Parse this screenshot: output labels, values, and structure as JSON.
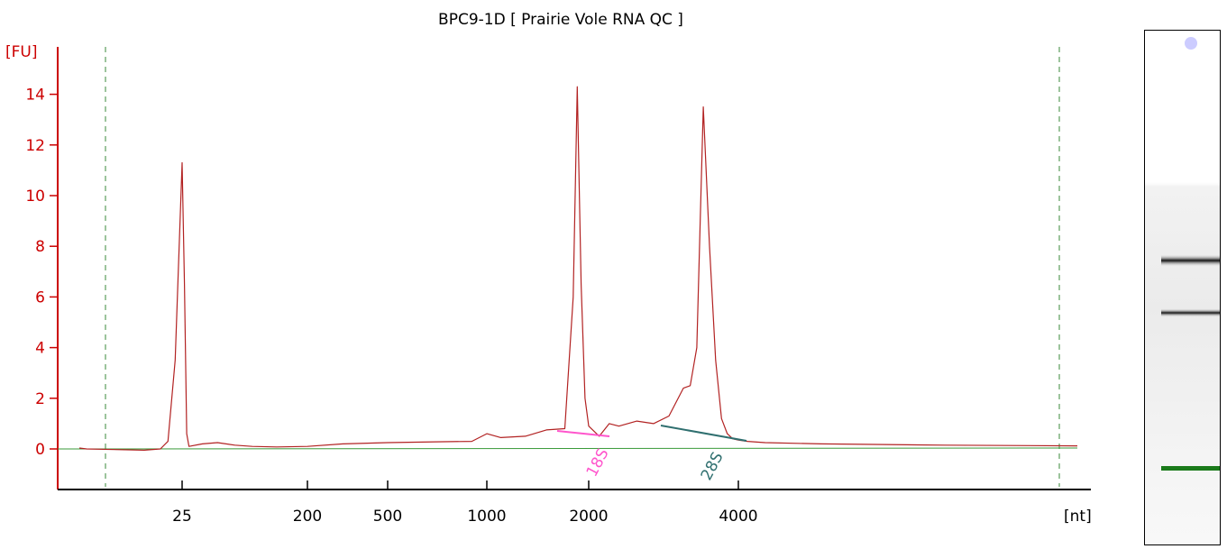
{
  "chart_data": {
    "type": "line",
    "title": "BPC9-1D  [ Prairie Vole RNA QC ]",
    "ylabel": "[FU]",
    "xlabel": "[nt]",
    "ylim": [
      -1.6,
      15.5
    ],
    "yticks": [
      0,
      2,
      4,
      6,
      8,
      10,
      12,
      14
    ],
    "ytick_labels": [
      "0",
      "2",
      "4",
      "6",
      "8",
      "10",
      "12",
      "14"
    ],
    "x_scale": "nonlinear (ladder-calibrated size axis)",
    "xtick_labels": [
      "25",
      "200",
      "500",
      "1000",
      "2000",
      "4000"
    ],
    "series": [
      {
        "color": "#b22222",
        "x": [
          20,
          22,
          23,
          24,
          25,
          26,
          27,
          28,
          35,
          45,
          60,
          80,
          120,
          200,
          300,
          500,
          700,
          900,
          1000,
          1100,
          1300,
          1500,
          1700,
          1800,
          1850,
          1900,
          1950,
          2000,
          2100,
          2200,
          2300,
          2500,
          2700,
          2900,
          3100,
          3200,
          3300,
          3400,
          3500,
          3600,
          3700,
          3800,
          3900,
          4000,
          4100,
          4300,
          5000,
          7000,
          10000
        ],
        "values": [
          -0.05,
          0.0,
          0.3,
          3.5,
          11.3,
          6.5,
          0.6,
          0.1,
          0.2,
          0.25,
          0.15,
          0.1,
          0.08,
          0.1,
          0.2,
          0.25,
          0.28,
          0.3,
          0.6,
          0.45,
          0.5,
          0.75,
          0.8,
          6.0,
          14.3,
          6.5,
          2.0,
          0.9,
          0.5,
          1.0,
          0.9,
          1.1,
          1.0,
          1.3,
          2.4,
          2.5,
          4.0,
          13.5,
          8.0,
          3.5,
          1.2,
          0.6,
          0.4,
          0.35,
          0.3,
          0.25,
          0.2,
          0.15,
          0.12
        ]
      }
    ],
    "peaks": [
      {
        "label": "18S",
        "color": "#ff55cc"
      },
      {
        "label": "28S",
        "color": "#2f6f6f"
      }
    ],
    "grid": false,
    "legend": "none"
  },
  "colors": {
    "trace": "#b22222",
    "y_axis": "#cc0000",
    "baseline": "#3a9a3a",
    "marker_lines": "#3a8a3a",
    "gel_bands": "#222222",
    "gel_marker": "#1a7a1a"
  }
}
